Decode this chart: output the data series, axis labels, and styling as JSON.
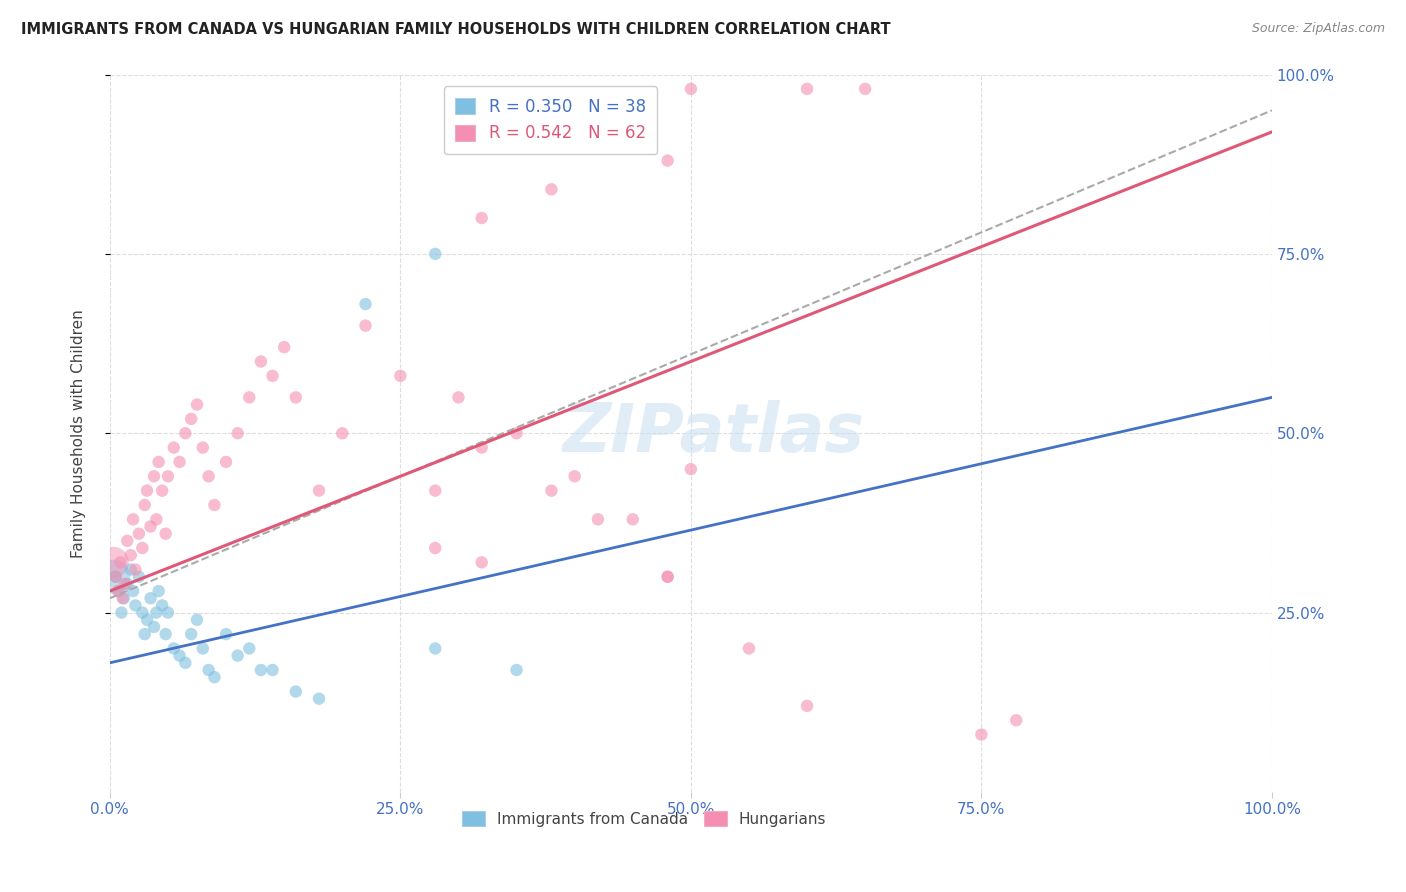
{
  "title": "IMMIGRANTS FROM CANADA VS HUNGARIAN FAMILY HOUSEHOLDS WITH CHILDREN CORRELATION CHART",
  "source": "Source: ZipAtlas.com",
  "ylabel": "Family Households with Children",
  "xlim": [
    0,
    1
  ],
  "ylim": [
    0,
    1
  ],
  "xticks": [
    0,
    0.25,
    0.5,
    0.75,
    1.0
  ],
  "yticks": [
    0.25,
    0.5,
    0.75,
    1.0
  ],
  "blue_color": "#7fbfdf",
  "pink_color": "#f48fb1",
  "blue_line_color": "#4472c4",
  "pink_line_color": "#e05878",
  "dashed_line_color": "#aaaaaa",
  "watermark_text": "ZIPatlas",
  "legend_text_blue": "R = 0.350   N = 38",
  "legend_text_pink": "R = 0.542   N = 62",
  "legend_color_blue": "#4472c4",
  "legend_color_pink": "#e05878",
  "bottom_legend_blue": "Immigrants from Canada",
  "bottom_legend_pink": "Hungarians",
  "blue_line_x0": 0,
  "blue_line_y0": 0.18,
  "blue_line_x1": 1,
  "blue_line_y1": 0.55,
  "pink_line_x0": 0,
  "pink_line_y0": 0.28,
  "pink_line_x1": 1,
  "pink_line_y1": 0.92,
  "dashed_line_x0": 0,
  "dashed_line_y0": 0.27,
  "dashed_line_x1": 1,
  "dashed_line_y1": 0.95,
  "blue_scatter_x": [
    0.005,
    0.008,
    0.01,
    0.012,
    0.015,
    0.018,
    0.02,
    0.022,
    0.025,
    0.028,
    0.03,
    0.032,
    0.035,
    0.038,
    0.04,
    0.042,
    0.045,
    0.048,
    0.05,
    0.055,
    0.06,
    0.065,
    0.07,
    0.075,
    0.08,
    0.085,
    0.09,
    0.1,
    0.11,
    0.12,
    0.13,
    0.14,
    0.16,
    0.18,
    0.22,
    0.28,
    0.35,
    0.28
  ],
  "blue_scatter_y": [
    0.3,
    0.28,
    0.25,
    0.27,
    0.29,
    0.31,
    0.28,
    0.26,
    0.3,
    0.25,
    0.22,
    0.24,
    0.27,
    0.23,
    0.25,
    0.28,
    0.26,
    0.22,
    0.25,
    0.2,
    0.19,
    0.18,
    0.22,
    0.24,
    0.2,
    0.17,
    0.16,
    0.22,
    0.19,
    0.2,
    0.17,
    0.17,
    0.14,
    0.13,
    0.68,
    0.2,
    0.17,
    0.75
  ],
  "blue_scatter_sizes": [
    80,
    80,
    80,
    80,
    80,
    80,
    80,
    80,
    80,
    80,
    80,
    80,
    80,
    80,
    80,
    80,
    80,
    80,
    80,
    80,
    80,
    80,
    80,
    80,
    80,
    80,
    80,
    80,
    80,
    80,
    80,
    80,
    80,
    80,
    80,
    80,
    80,
    80
  ],
  "blue_big_x": [
    0.003
  ],
  "blue_big_y": [
    0.3
  ],
  "blue_big_size": [
    600
  ],
  "pink_scatter_x": [
    0.005,
    0.007,
    0.009,
    0.011,
    0.013,
    0.015,
    0.018,
    0.02,
    0.022,
    0.025,
    0.028,
    0.03,
    0.032,
    0.035,
    0.038,
    0.04,
    0.042,
    0.045,
    0.048,
    0.05,
    0.055,
    0.06,
    0.065,
    0.07,
    0.075,
    0.08,
    0.085,
    0.09,
    0.1,
    0.11,
    0.12,
    0.13,
    0.14,
    0.15,
    0.16,
    0.18,
    0.2,
    0.22,
    0.25,
    0.28,
    0.3,
    0.32,
    0.35,
    0.38,
    0.4,
    0.42,
    0.45,
    0.48,
    0.5,
    0.28,
    0.32,
    0.48,
    0.55,
    0.6,
    0.75,
    0.78,
    0.32,
    0.38,
    0.48,
    0.5,
    0.6,
    0.65
  ],
  "pink_scatter_y": [
    0.3,
    0.28,
    0.32,
    0.27,
    0.29,
    0.35,
    0.33,
    0.38,
    0.31,
    0.36,
    0.34,
    0.4,
    0.42,
    0.37,
    0.44,
    0.38,
    0.46,
    0.42,
    0.36,
    0.44,
    0.48,
    0.46,
    0.5,
    0.52,
    0.54,
    0.48,
    0.44,
    0.4,
    0.46,
    0.5,
    0.55,
    0.6,
    0.58,
    0.62,
    0.55,
    0.42,
    0.5,
    0.65,
    0.58,
    0.42,
    0.55,
    0.48,
    0.5,
    0.42,
    0.44,
    0.38,
    0.38,
    0.3,
    0.45,
    0.34,
    0.32,
    0.3,
    0.2,
    0.12,
    0.08,
    0.1,
    0.8,
    0.84,
    0.88,
    0.98,
    0.98,
    0.98
  ],
  "pink_scatter_sizes": [
    80,
    80,
    80,
    80,
    80,
    80,
    80,
    80,
    80,
    80,
    80,
    80,
    80,
    80,
    80,
    80,
    80,
    80,
    80,
    80,
    80,
    80,
    80,
    80,
    80,
    80,
    80,
    80,
    80,
    80,
    80,
    80,
    80,
    80,
    80,
    80,
    80,
    80,
    80,
    80,
    80,
    80,
    80,
    80,
    80,
    80,
    80,
    80,
    80,
    80,
    80,
    80,
    80,
    80,
    80,
    80,
    80,
    80,
    80,
    80,
    80,
    80
  ],
  "pink_big_x": [
    0.003
  ],
  "pink_big_y": [
    0.32
  ],
  "pink_big_size": [
    500
  ]
}
